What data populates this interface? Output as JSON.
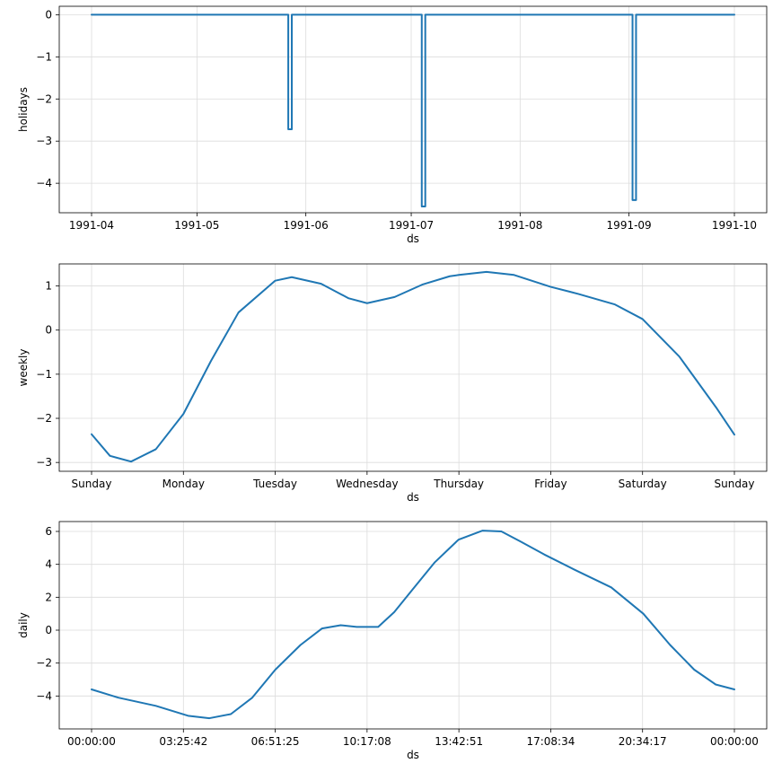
{
  "colors": {
    "line": "#1f77b4",
    "grid": "#dcdcdc",
    "axes": "#000000"
  },
  "chart_data": [
    {
      "type": "line",
      "xlabel": "ds",
      "ylabel": "holidays",
      "x_ticks": [
        "1991-04",
        "1991-05",
        "1991-06",
        "1991-07",
        "1991-08",
        "1991-09",
        "1991-10"
      ],
      "y_ticks": [
        0,
        -1,
        -2,
        -3,
        -4
      ],
      "xlim": [
        "1991-04-01",
        "1991-10-01"
      ],
      "ylim": [
        -4.7,
        0.2
      ],
      "grid": true,
      "series": [
        {
          "x": [
            "1991-04-01",
            "1991-05-27",
            "1991-05-27",
            "1991-05-28",
            "1991-05-28",
            "1991-07-04",
            "1991-07-04",
            "1991-07-05",
            "1991-07-05",
            "1991-09-02",
            "1991-09-02",
            "1991-09-03",
            "1991-09-03",
            "1991-10-01"
          ],
          "values": [
            0,
            0,
            -2.72,
            -2.72,
            0,
            0,
            -4.55,
            -4.55,
            0,
            0,
            -4.4,
            -4.4,
            0,
            0
          ]
        }
      ]
    },
    {
      "type": "line",
      "xlabel": "ds",
      "ylabel": "weekly",
      "x_ticks": [
        "Sunday",
        "Monday",
        "Tuesday",
        "Wednesday",
        "Thursday",
        "Friday",
        "Saturday",
        "Sunday"
      ],
      "y_ticks": [
        1,
        0,
        -1,
        -2,
        -3
      ],
      "xlim": [
        0,
        7
      ],
      "ylim": [
        -3.2,
        1.5
      ],
      "grid": true,
      "series": [
        {
          "x": [
            0,
            0.2,
            0.43,
            0.7,
            1.0,
            1.3,
            1.6,
            2.0,
            2.18,
            2.5,
            2.8,
            3.0,
            3.3,
            3.6,
            3.9,
            4.0,
            4.3,
            4.6,
            5.0,
            5.3,
            5.7,
            6.0,
            6.4,
            6.8,
            7.0
          ],
          "values": [
            -2.36,
            -2.85,
            -2.98,
            -2.7,
            -1.9,
            -0.7,
            0.4,
            1.12,
            1.2,
            1.05,
            0.72,
            0.61,
            0.75,
            1.03,
            1.22,
            1.25,
            1.32,
            1.25,
            0.98,
            0.82,
            0.58,
            0.25,
            -0.6,
            -1.75,
            -2.37
          ]
        }
      ]
    },
    {
      "type": "line",
      "xlabel": "ds",
      "ylabel": "daily",
      "x_ticks": [
        "00:00:00",
        "03:25:42",
        "06:51:25",
        "10:17:08",
        "13:42:51",
        "17:08:34",
        "20:34:17",
        "00:00:00"
      ],
      "y_ticks": [
        6,
        4,
        2,
        0,
        -2,
        -4
      ],
      "xlim": [
        0,
        24
      ],
      "ylim": [
        -6.0,
        6.6
      ],
      "grid": true,
      "series": [
        {
          "x": [
            0,
            1.0,
            2.4,
            3.6,
            4.4,
            5.2,
            6.0,
            6.86,
            7.8,
            8.6,
            9.3,
            9.9,
            10.7,
            11.3,
            12.0,
            12.8,
            13.7,
            14.6,
            15.3,
            16.0,
            16.9,
            18.0,
            19.4,
            20.6,
            21.6,
            22.5,
            23.3,
            24.0
          ],
          "values": [
            -3.6,
            -4.1,
            -4.6,
            -5.2,
            -5.35,
            -5.1,
            -4.1,
            -2.4,
            -0.9,
            0.1,
            0.3,
            0.2,
            0.2,
            1.1,
            2.5,
            4.1,
            5.5,
            6.05,
            6.0,
            5.4,
            4.6,
            3.7,
            2.6,
            1.0,
            -0.9,
            -2.4,
            -3.3,
            -3.6
          ]
        }
      ]
    }
  ]
}
